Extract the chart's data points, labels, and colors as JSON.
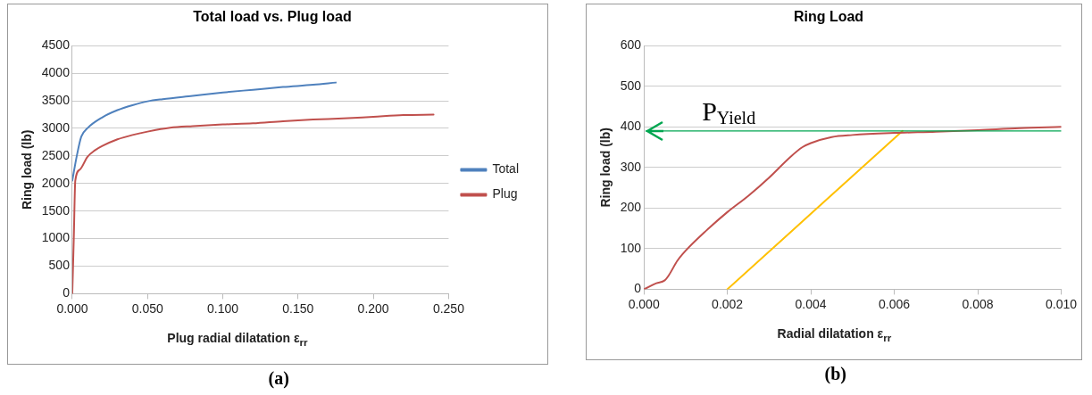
{
  "chart_data": [
    {
      "type": "line",
      "title": "Total load vs. Plug load",
      "xlabel": "Plug radial dilatation ε$_{rr}$",
      "ylabel": "Ring load (lb)",
      "annotations": [
        "(a)"
      ],
      "legend": "right",
      "grid": "y",
      "marker": "none",
      "line_style": "solid",
      "xlim": [
        0,
        0.25
      ],
      "xticks": [
        {
          "value": 0,
          "label": "0.000"
        },
        {
          "value": 0.05,
          "label": "0.050"
        },
        {
          "value": 0.1,
          "label": "0.100"
        },
        {
          "value": 0.15,
          "label": "0.150"
        },
        {
          "value": 0.2,
          "label": "0.200"
        },
        {
          "value": 0.25,
          "label": "0.250"
        }
      ],
      "ylim": [
        0,
        4500
      ],
      "yticks": [
        0,
        500,
        1000,
        1500,
        2000,
        2500,
        3000,
        3500,
        4000,
        4500
      ],
      "series": [
        {
          "name": "Total",
          "color": "#4f81bd",
          "x": [
            0,
            0.003,
            0.006,
            0.01,
            0.02,
            0.03,
            0.04,
            0.05,
            0.06,
            0.08,
            0.1,
            0.12,
            0.14,
            0.16,
            0.175
          ],
          "values": [
            2050,
            2500,
            2850,
            3000,
            3200,
            3330,
            3420,
            3490,
            3530,
            3590,
            3650,
            3700,
            3750,
            3790,
            3830
          ]
        },
        {
          "name": "Plug",
          "color": "#c0504d",
          "x": [
            0,
            0.001,
            0.002,
            0.005,
            0.01,
            0.015,
            0.02,
            0.03,
            0.04,
            0.05,
            0.065,
            0.08,
            0.1,
            0.12,
            0.14,
            0.16,
            0.18,
            0.2,
            0.22,
            0.24
          ],
          "values": [
            0,
            1000,
            2050,
            2250,
            2480,
            2600,
            2680,
            2800,
            2880,
            2940,
            3010,
            3040,
            3070,
            3090,
            3130,
            3160,
            3180,
            3210,
            3240,
            3250
          ]
        }
      ]
    },
    {
      "type": "line",
      "title": "Ring Load",
      "xlabel": "Radial dilatation ε$_{rr}$",
      "ylabel": "Ring load (lb)",
      "annotations": [
        "(b)"
      ],
      "legend": false,
      "grid": "y",
      "marker": "none",
      "line_style": "solid",
      "xlim": [
        0,
        0.01
      ],
      "xticks": [
        {
          "value": 0,
          "label": "0.000"
        },
        {
          "value": 0.002,
          "label": "0.002"
        },
        {
          "value": 0.004,
          "label": "0.004"
        },
        {
          "value": 0.006,
          "label": "0.006"
        },
        {
          "value": 0.008,
          "label": "0.008"
        },
        {
          "value": 0.01,
          "label": "0.010"
        }
      ],
      "ylim": [
        0,
        600
      ],
      "yticks": [
        0,
        100,
        200,
        300,
        400,
        500,
        600
      ],
      "ref_lines": [
        {
          "axis": "y",
          "value": 390,
          "label": "P$_{Yield}$",
          "color": "#00a650"
        }
      ],
      "series": [
        {
          "color": "#c0504d",
          "x": [
            0,
            0.0003,
            0.0005,
            0.0006,
            0.0008,
            0.001,
            0.0015,
            0.002,
            0.0025,
            0.003,
            0.0035,
            0.0038,
            0.004,
            0.0045,
            0.005,
            0.006,
            0.007,
            0.008,
            0.009,
            0.01
          ],
          "values": [
            0,
            15,
            22,
            35,
            70,
            95,
            145,
            190,
            230,
            275,
            325,
            350,
            360,
            375,
            380,
            385,
            388,
            392,
            397,
            400
          ]
        },
        {
          "color": "#ffc000",
          "x": [
            0.002,
            0.0062
          ],
          "values": [
            0,
            390
          ]
        }
      ]
    }
  ]
}
